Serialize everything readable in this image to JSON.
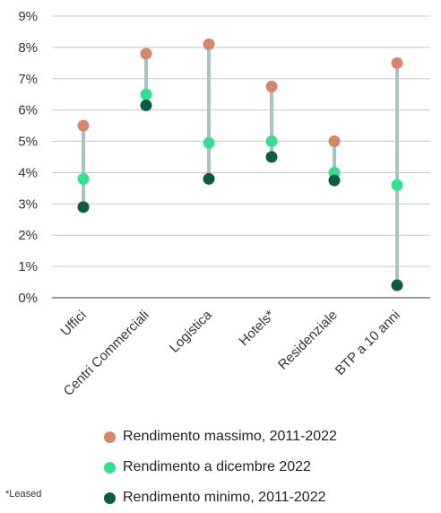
{
  "chart_data": {
    "type": "dot-range",
    "categories": [
      "Uffici",
      "Centri Commerciali",
      "Logistica",
      "Hotels*",
      "Residenziale",
      "BTP a 10 anni"
    ],
    "series": [
      {
        "name": "Rendimento massimo, 2011-2022",
        "color": "#d4876a",
        "values": [
          5.5,
          7.8,
          8.1,
          6.75,
          5.0,
          7.5
        ]
      },
      {
        "name": "Rendimento a dicembre 2022",
        "color": "#33e08f",
        "values": [
          3.8,
          6.5,
          4.95,
          5.0,
          4.0,
          3.6
        ]
      },
      {
        "name": "Rendimento minimo, 2011-2022",
        "color": "#0d5a45",
        "values": [
          2.9,
          6.15,
          3.8,
          4.5,
          3.75,
          0.4
        ]
      }
    ],
    "ylim": [
      0,
      9
    ],
    "yticks": [
      "0%",
      "1%",
      "2%",
      "3%",
      "4%",
      "5%",
      "6%",
      "7%",
      "8%",
      "9%"
    ],
    "grid": true,
    "range_line_color": "#a9c3c2",
    "legend_position": "bottom"
  },
  "footnote": "*Leased"
}
